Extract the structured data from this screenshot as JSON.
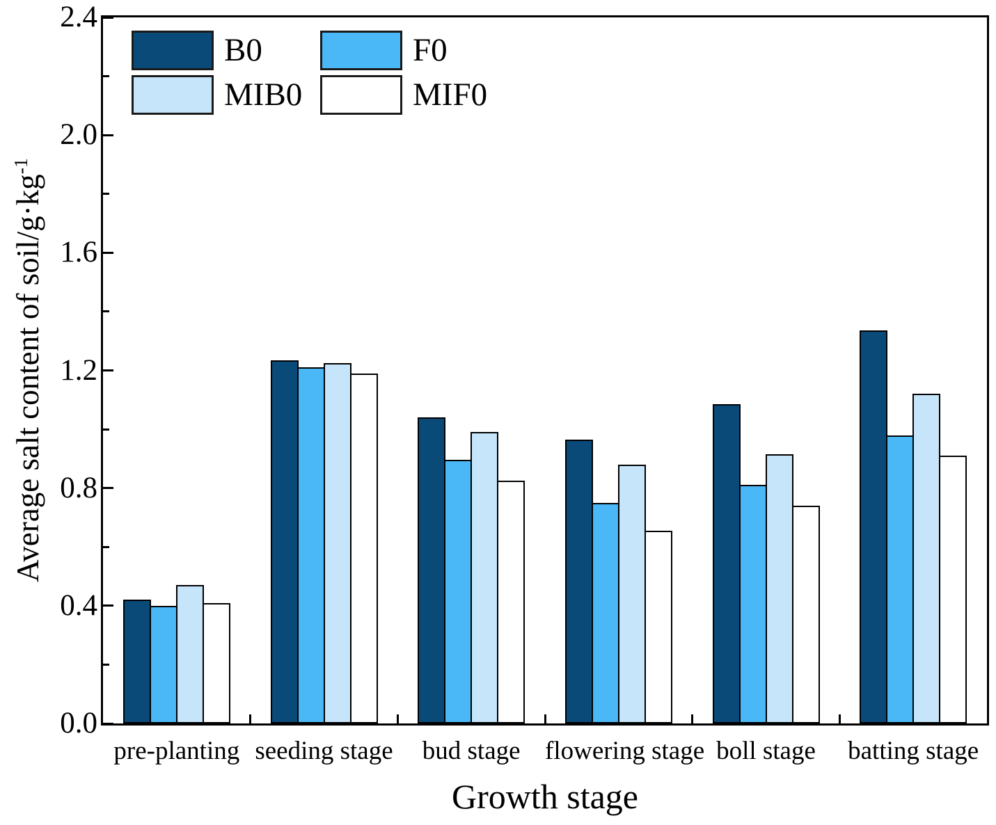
{
  "chart_data": {
    "type": "bar",
    "title": "",
    "xlabel": "Growth stage",
    "ylabel": "Average salt content of soil/g·kg⁻¹",
    "ylabel_parts": {
      "base": "Average salt content of soil/g·kg",
      "exponent": "-1"
    },
    "ylim": [
      0.0,
      2.4
    ],
    "ytick_major_step": 0.4,
    "ytick_minor_step": 0.2,
    "ytick_labels": [
      "0.0",
      "0.4",
      "0.8",
      "1.2",
      "1.6",
      "2.0",
      "2.4"
    ],
    "grid": false,
    "legend_position": "top-left-inside",
    "categories": [
      "pre-planting",
      "seeding stage",
      "bud stage",
      "flowering stage",
      "boll stage",
      "batting stage"
    ],
    "series": [
      {
        "name": "B0",
        "color": "#0a4a78",
        "values": [
          0.42,
          1.235,
          1.04,
          0.965,
          1.085,
          1.335
        ]
      },
      {
        "name": "F0",
        "color": "#4ab7f7",
        "values": [
          0.4,
          1.21,
          0.895,
          0.75,
          0.81,
          0.98
        ]
      },
      {
        "name": "MIB0",
        "color": "#c6e5fa",
        "values": [
          0.47,
          1.225,
          0.99,
          0.88,
          0.915,
          1.12
        ]
      },
      {
        "name": "MIF0",
        "color": "#ffffff",
        "values": [
          0.41,
          1.19,
          0.825,
          0.655,
          0.74,
          0.91
        ]
      }
    ],
    "bar_border_color": "#000000",
    "axis_color": "#000000"
  }
}
